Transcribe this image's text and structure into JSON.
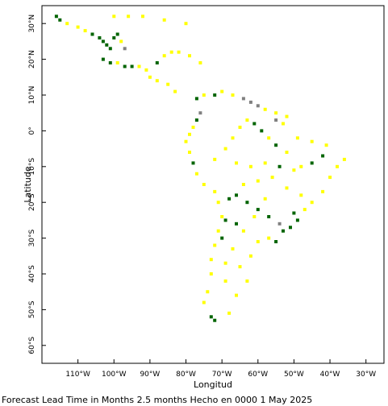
{
  "map": {
    "x_axis_title": "Longitud",
    "y_axis_title": "Latitude",
    "caption": "Forecast Lead Time in Months 2.5 months Hecho en 0000 1 May 2025",
    "lon_range": [
      -120,
      -25
    ],
    "lat_range": [
      -65,
      35
    ],
    "lon_ticks": [
      {
        "value": -110,
        "label": "110°W"
      },
      {
        "value": -100,
        "label": "100°W"
      },
      {
        "value": -90,
        "label": "90°W"
      },
      {
        "value": -80,
        "label": "80°W"
      },
      {
        "value": -70,
        "label": "70°W"
      },
      {
        "value": -60,
        "label": "60°W"
      },
      {
        "value": -50,
        "label": "50°W"
      },
      {
        "value": -40,
        "label": "40°W"
      },
      {
        "value": -30,
        "label": "30°W"
      }
    ],
    "lat_ticks": [
      {
        "value": 30,
        "label": "30°N"
      },
      {
        "value": 20,
        "label": "20°N"
      },
      {
        "value": 10,
        "label": "10°N"
      },
      {
        "value": 0,
        "label": "0°"
      },
      {
        "value": -10,
        "label": "10°S"
      },
      {
        "value": -20,
        "label": "20°S"
      },
      {
        "value": -30,
        "label": "30°S"
      },
      {
        "value": -40,
        "label": "40°S"
      },
      {
        "value": -50,
        "label": "50°S"
      },
      {
        "value": -60,
        "label": "60°S"
      }
    ],
    "category_colors": {
      "yellow": "#ffff00",
      "green": "#006400",
      "gray": "#808080"
    },
    "cells": [
      {
        "lon": -116,
        "lat": 32,
        "c": "green"
      },
      {
        "lon": -115,
        "lat": 31,
        "c": "green"
      },
      {
        "lon": -113,
        "lat": 30,
        "c": "yellow"
      },
      {
        "lon": -110,
        "lat": 29,
        "c": "yellow"
      },
      {
        "lon": -108,
        "lat": 28,
        "c": "yellow"
      },
      {
        "lon": -106,
        "lat": 27,
        "c": "green"
      },
      {
        "lon": -104,
        "lat": 26,
        "c": "green"
      },
      {
        "lon": -103,
        "lat": 25,
        "c": "green"
      },
      {
        "lon": -102,
        "lat": 24,
        "c": "green"
      },
      {
        "lon": -101,
        "lat": 23,
        "c": "green"
      },
      {
        "lon": -100,
        "lat": 26,
        "c": "green"
      },
      {
        "lon": -99,
        "lat": 27,
        "c": "green"
      },
      {
        "lon": -98,
        "lat": 25,
        "c": "yellow"
      },
      {
        "lon": -97,
        "lat": 23,
        "c": "gray"
      },
      {
        "lon": -103,
        "lat": 20,
        "c": "green"
      },
      {
        "lon": -101,
        "lat": 19,
        "c": "green"
      },
      {
        "lon": -99,
        "lat": 19,
        "c": "yellow"
      },
      {
        "lon": -97,
        "lat": 18,
        "c": "green"
      },
      {
        "lon": -95,
        "lat": 18,
        "c": "green"
      },
      {
        "lon": -93,
        "lat": 18,
        "c": "yellow"
      },
      {
        "lon": -91,
        "lat": 17,
        "c": "yellow"
      },
      {
        "lon": -88,
        "lat": 19,
        "c": "green"
      },
      {
        "lon": -86,
        "lat": 21,
        "c": "yellow"
      },
      {
        "lon": -84,
        "lat": 22,
        "c": "yellow"
      },
      {
        "lon": -82,
        "lat": 22,
        "c": "yellow"
      },
      {
        "lon": -79,
        "lat": 21,
        "c": "yellow"
      },
      {
        "lon": -76,
        "lat": 19,
        "c": "yellow"
      },
      {
        "lon": -100,
        "lat": 32,
        "c": "yellow"
      },
      {
        "lon": -96,
        "lat": 32,
        "c": "yellow"
      },
      {
        "lon": -92,
        "lat": 32,
        "c": "yellow"
      },
      {
        "lon": -86,
        "lat": 31,
        "c": "yellow"
      },
      {
        "lon": -80,
        "lat": 30,
        "c": "yellow"
      },
      {
        "lon": -90,
        "lat": 15,
        "c": "yellow"
      },
      {
        "lon": -88,
        "lat": 14,
        "c": "yellow"
      },
      {
        "lon": -85,
        "lat": 13,
        "c": "yellow"
      },
      {
        "lon": -83,
        "lat": 11,
        "c": "yellow"
      },
      {
        "lon": -77,
        "lat": 9,
        "c": "green"
      },
      {
        "lon": -75,
        "lat": 10,
        "c": "yellow"
      },
      {
        "lon": -72,
        "lat": 10,
        "c": "green"
      },
      {
        "lon": -70,
        "lat": 11,
        "c": "yellow"
      },
      {
        "lon": -67,
        "lat": 10,
        "c": "yellow"
      },
      {
        "lon": -64,
        "lat": 9,
        "c": "gray"
      },
      {
        "lon": -62,
        "lat": 8,
        "c": "gray"
      },
      {
        "lon": -60,
        "lat": 7,
        "c": "gray"
      },
      {
        "lon": -58,
        "lat": 6,
        "c": "yellow"
      },
      {
        "lon": -55,
        "lat": 5,
        "c": "yellow"
      },
      {
        "lon": -52,
        "lat": 4,
        "c": "yellow"
      },
      {
        "lon": -76,
        "lat": 5,
        "c": "gray"
      },
      {
        "lon": -77,
        "lat": 3,
        "c": "green"
      },
      {
        "lon": -78,
        "lat": 1,
        "c": "yellow"
      },
      {
        "lon": -79,
        "lat": -1,
        "c": "yellow"
      },
      {
        "lon": -80,
        "lat": -3,
        "c": "yellow"
      },
      {
        "lon": -79,
        "lat": -6,
        "c": "yellow"
      },
      {
        "lon": -78,
        "lat": -9,
        "c": "green"
      },
      {
        "lon": -77,
        "lat": -12,
        "c": "yellow"
      },
      {
        "lon": -75,
        "lat": -15,
        "c": "yellow"
      },
      {
        "lon": -72,
        "lat": -17,
        "c": "yellow"
      },
      {
        "lon": -71,
        "lat": -20,
        "c": "yellow"
      },
      {
        "lon": -70,
        "lat": -24,
        "c": "yellow"
      },
      {
        "lon": -71,
        "lat": -28,
        "c": "yellow"
      },
      {
        "lon": -72,
        "lat": -32,
        "c": "yellow"
      },
      {
        "lon": -73,
        "lat": -36,
        "c": "yellow"
      },
      {
        "lon": -73,
        "lat": -40,
        "c": "yellow"
      },
      {
        "lon": -74,
        "lat": -45,
        "c": "yellow"
      },
      {
        "lon": -75,
        "lat": -48,
        "c": "yellow"
      },
      {
        "lon": -73,
        "lat": -52,
        "c": "green"
      },
      {
        "lon": -72,
        "lat": -53,
        "c": "green"
      },
      {
        "lon": -68,
        "lat": -51,
        "c": "yellow"
      },
      {
        "lon": -66,
        "lat": -46,
        "c": "yellow"
      },
      {
        "lon": -63,
        "lat": -42,
        "c": "yellow"
      },
      {
        "lon": -65,
        "lat": -38,
        "c": "yellow"
      },
      {
        "lon": -62,
        "lat": -35,
        "c": "yellow"
      },
      {
        "lon": -60,
        "lat": -31,
        "c": "yellow"
      },
      {
        "lon": -57,
        "lat": -30,
        "c": "yellow"
      },
      {
        "lon": -55,
        "lat": -31,
        "c": "green"
      },
      {
        "lon": -53,
        "lat": -28,
        "c": "green"
      },
      {
        "lon": -51,
        "lat": -27,
        "c": "green"
      },
      {
        "lon": -49,
        "lat": -25,
        "c": "green"
      },
      {
        "lon": -54,
        "lat": -26,
        "c": "gray"
      },
      {
        "lon": -57,
        "lat": -24,
        "c": "green"
      },
      {
        "lon": -60,
        "lat": -22,
        "c": "green"
      },
      {
        "lon": -63,
        "lat": -20,
        "c": "green"
      },
      {
        "lon": -66,
        "lat": -18,
        "c": "green"
      },
      {
        "lon": -68,
        "lat": -19,
        "c": "green"
      },
      {
        "lon": -70,
        "lat": -30,
        "c": "green"
      },
      {
        "lon": -66,
        "lat": -26,
        "c": "green"
      },
      {
        "lon": -69,
        "lat": -25,
        "c": "green"
      },
      {
        "lon": -64,
        "lat": -15,
        "c": "yellow"
      },
      {
        "lon": -60,
        "lat": -14,
        "c": "yellow"
      },
      {
        "lon": -56,
        "lat": -13,
        "c": "yellow"
      },
      {
        "lon": -52,
        "lat": -16,
        "c": "yellow"
      },
      {
        "lon": -48,
        "lat": -18,
        "c": "yellow"
      },
      {
        "lon": -45,
        "lat": -20,
        "c": "yellow"
      },
      {
        "lon": -42,
        "lat": -17,
        "c": "yellow"
      },
      {
        "lon": -40,
        "lat": -13,
        "c": "yellow"
      },
      {
        "lon": -38,
        "lat": -10,
        "c": "yellow"
      },
      {
        "lon": -36,
        "lat": -8,
        "c": "yellow"
      },
      {
        "lon": -42,
        "lat": -7,
        "c": "green"
      },
      {
        "lon": -45,
        "lat": -9,
        "c": "green"
      },
      {
        "lon": -48,
        "lat": -10,
        "c": "yellow"
      },
      {
        "lon": -52,
        "lat": -6,
        "c": "yellow"
      },
      {
        "lon": -55,
        "lat": -4,
        "c": "green"
      },
      {
        "lon": -57,
        "lat": -2,
        "c": "yellow"
      },
      {
        "lon": -59,
        "lat": 0,
        "c": "green"
      },
      {
        "lon": -61,
        "lat": 2,
        "c": "green"
      },
      {
        "lon": -63,
        "lat": 3,
        "c": "yellow"
      },
      {
        "lon": -65,
        "lat": 1,
        "c": "yellow"
      },
      {
        "lon": -67,
        "lat": -2,
        "c": "yellow"
      },
      {
        "lon": -69,
        "lat": -5,
        "c": "yellow"
      },
      {
        "lon": -72,
        "lat": -8,
        "c": "yellow"
      },
      {
        "lon": -66,
        "lat": -9,
        "c": "yellow"
      },
      {
        "lon": -62,
        "lat": -10,
        "c": "yellow"
      },
      {
        "lon": -58,
        "lat": -9,
        "c": "yellow"
      },
      {
        "lon": -54,
        "lat": -10,
        "c": "green"
      },
      {
        "lon": -50,
        "lat": -11,
        "c": "yellow"
      },
      {
        "lon": -55,
        "lat": 3,
        "c": "gray"
      },
      {
        "lon": -53,
        "lat": 2,
        "c": "yellow"
      },
      {
        "lon": -49,
        "lat": -2,
        "c": "yellow"
      },
      {
        "lon": -45,
        "lat": -3,
        "c": "yellow"
      },
      {
        "lon": -41,
        "lat": -4,
        "c": "yellow"
      },
      {
        "lon": -47,
        "lat": -22,
        "c": "yellow"
      },
      {
        "lon": -50,
        "lat": -23,
        "c": "green"
      },
      {
        "lon": -58,
        "lat": -19,
        "c": "yellow"
      },
      {
        "lon": -61,
        "lat": -24,
        "c": "yellow"
      },
      {
        "lon": -64,
        "lat": -28,
        "c": "yellow"
      },
      {
        "lon": -67,
        "lat": -33,
        "c": "yellow"
      },
      {
        "lon": -69,
        "lat": -37,
        "c": "yellow"
      },
      {
        "lon": -69,
        "lat": -42,
        "c": "yellow"
      }
    ]
  }
}
